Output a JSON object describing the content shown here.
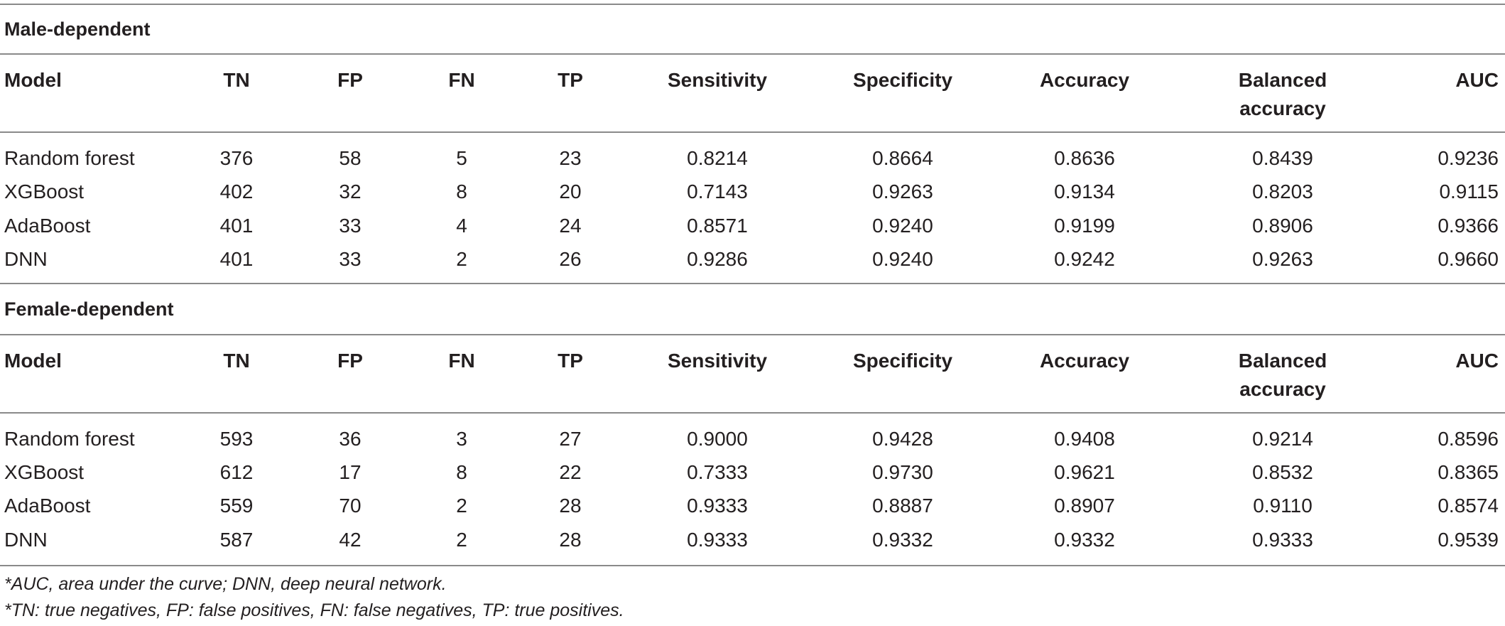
{
  "sections": [
    {
      "title": "Male-dependent",
      "headers": [
        "Model",
        "TN",
        "FP",
        "FN",
        "TP",
        "Sensitivity",
        "Specificity",
        "Accuracy",
        "Balanced\naccuracy",
        "AUC"
      ],
      "rows": [
        [
          "Random forest",
          "376",
          "58",
          "5",
          "23",
          "0.8214",
          "0.8664",
          "0.8636",
          "0.8439",
          "0.9236"
        ],
        [
          "XGBoost",
          "402",
          "32",
          "8",
          "20",
          "0.7143",
          "0.9263",
          "0.9134",
          "0.8203",
          "0.9115"
        ],
        [
          "AdaBoost",
          "401",
          "33",
          "4",
          "24",
          "0.8571",
          "0.9240",
          "0.9199",
          "0.8906",
          "0.9366"
        ],
        [
          "DNN",
          "401",
          "33",
          "2",
          "26",
          "0.9286",
          "0.9240",
          "0.9242",
          "0.9263",
          "0.9660"
        ]
      ]
    },
    {
      "title": "Female-dependent",
      "headers": [
        "Model",
        "TN",
        "FP",
        "FN",
        "TP",
        "Sensitivity",
        "Specificity",
        "Accuracy",
        "Balanced\naccuracy",
        "AUC"
      ],
      "rows": [
        [
          "Random forest",
          "593",
          "36",
          "3",
          "27",
          "0.9000",
          "0.9428",
          "0.9408",
          "0.9214",
          "0.8596"
        ],
        [
          "XGBoost",
          "612",
          "17",
          "8",
          "22",
          "0.7333",
          "0.9730",
          "0.9621",
          "0.8532",
          "0.8365"
        ],
        [
          "AdaBoost",
          "559",
          "70",
          "2",
          "28",
          "0.9333",
          "0.8887",
          "0.8907",
          "0.9110",
          "0.8574"
        ],
        [
          "DNN",
          "587",
          "42",
          "2",
          "28",
          "0.9333",
          "0.9332",
          "0.9332",
          "0.9333",
          "0.9539"
        ]
      ]
    }
  ],
  "footnotes": [
    "*AUC, area under the curve; DNN, deep neural network.",
    "*TN: true negatives, FP: false positives, FN: false negatives, TP: true positives."
  ]
}
